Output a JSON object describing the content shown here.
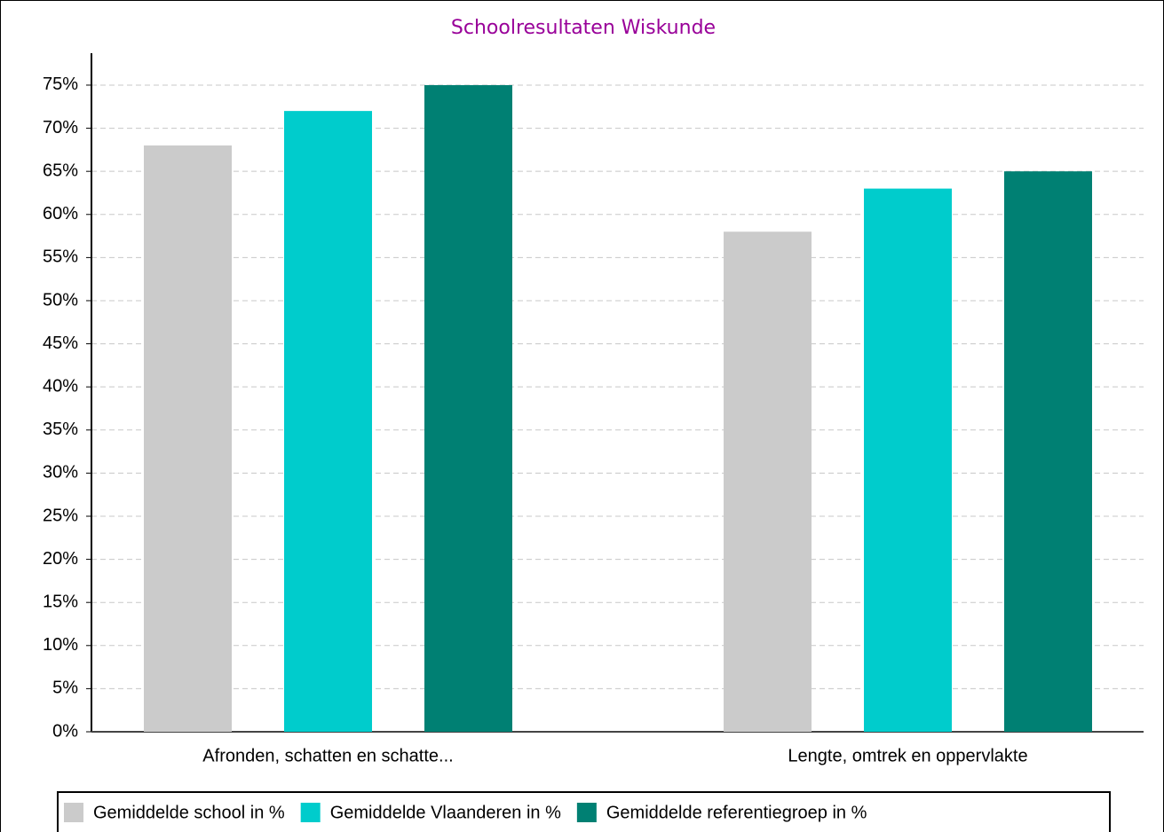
{
  "chart_data": {
    "type": "bar",
    "title": "Schoolresultaten Wiskunde",
    "categories": [
      "Afronden, schatten en schatte...",
      "Lengte, omtrek en oppervlakte"
    ],
    "series": [
      {
        "name": "Gemiddelde school in %",
        "color": "#cbcbcb",
        "values": [
          68,
          58
        ]
      },
      {
        "name": "Gemiddelde Vlaanderen in %",
        "color": "#00cccc",
        "values": [
          72,
          63
        ]
      },
      {
        "name": "Gemiddelde referentiegroep in %",
        "color": "#008073",
        "values": [
          75,
          65
        ]
      }
    ],
    "ylim": [
      0,
      78.7
    ],
    "yticks": [
      {
        "value": 0,
        "label": "0%"
      },
      {
        "value": 5,
        "label": "5%"
      },
      {
        "value": 10,
        "label": "10%"
      },
      {
        "value": 15,
        "label": "15%"
      },
      {
        "value": 20,
        "label": "20%"
      },
      {
        "value": 25,
        "label": "25%"
      },
      {
        "value": 30,
        "label": "30%"
      },
      {
        "value": 35,
        "label": "35%"
      },
      {
        "value": 40,
        "label": "40%"
      },
      {
        "value": 45,
        "label": "45%"
      },
      {
        "value": 50,
        "label": "50%"
      },
      {
        "value": 55,
        "label": "55%"
      },
      {
        "value": 60,
        "label": "60%"
      },
      {
        "value": 65,
        "label": "65%"
      },
      {
        "value": 70,
        "label": "70%"
      },
      {
        "value": 75,
        "label": "75%"
      }
    ],
    "grid": true
  }
}
